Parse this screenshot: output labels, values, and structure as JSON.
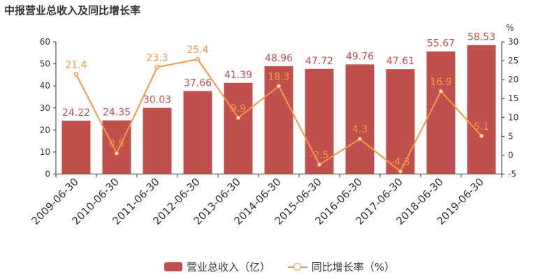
{
  "title": "中报营业总收入及同比增长率",
  "chart_data": {
    "type": "bar",
    "categories": [
      "2009-06-30",
      "2010-06-30",
      "2011-06-30",
      "2012-06-30",
      "2013-06-30",
      "2014-06-30",
      "2015-06-30",
      "2016-06-30",
      "2017-06-30",
      "2018-06-30",
      "2019-06-30"
    ],
    "series": [
      {
        "name": "营业总收入（亿）",
        "type": "bar",
        "axis": "left",
        "values": [
          24.22,
          24.35,
          30.03,
          37.66,
          41.39,
          48.96,
          47.72,
          49.76,
          47.61,
          55.67,
          58.53
        ]
      },
      {
        "name": "同比增长率（%）",
        "type": "line",
        "axis": "right",
        "values": [
          21.4,
          0.5,
          23.3,
          25.4,
          9.9,
          18.3,
          -2.5,
          4.3,
          -4.3,
          16.9,
          5.1
        ]
      }
    ],
    "left_axis": {
      "ylim": [
        0,
        60
      ],
      "ticks": [
        0,
        10,
        20,
        30,
        40,
        50,
        60
      ]
    },
    "right_axis": {
      "unit": "%",
      "ylim": [
        -5,
        30
      ],
      "ticks": [
        -5,
        0,
        5,
        10,
        15,
        20,
        25,
        30
      ]
    },
    "colors": {
      "bar": "#c0504d",
      "line": "#f79646"
    },
    "legend": "bottom-center"
  }
}
